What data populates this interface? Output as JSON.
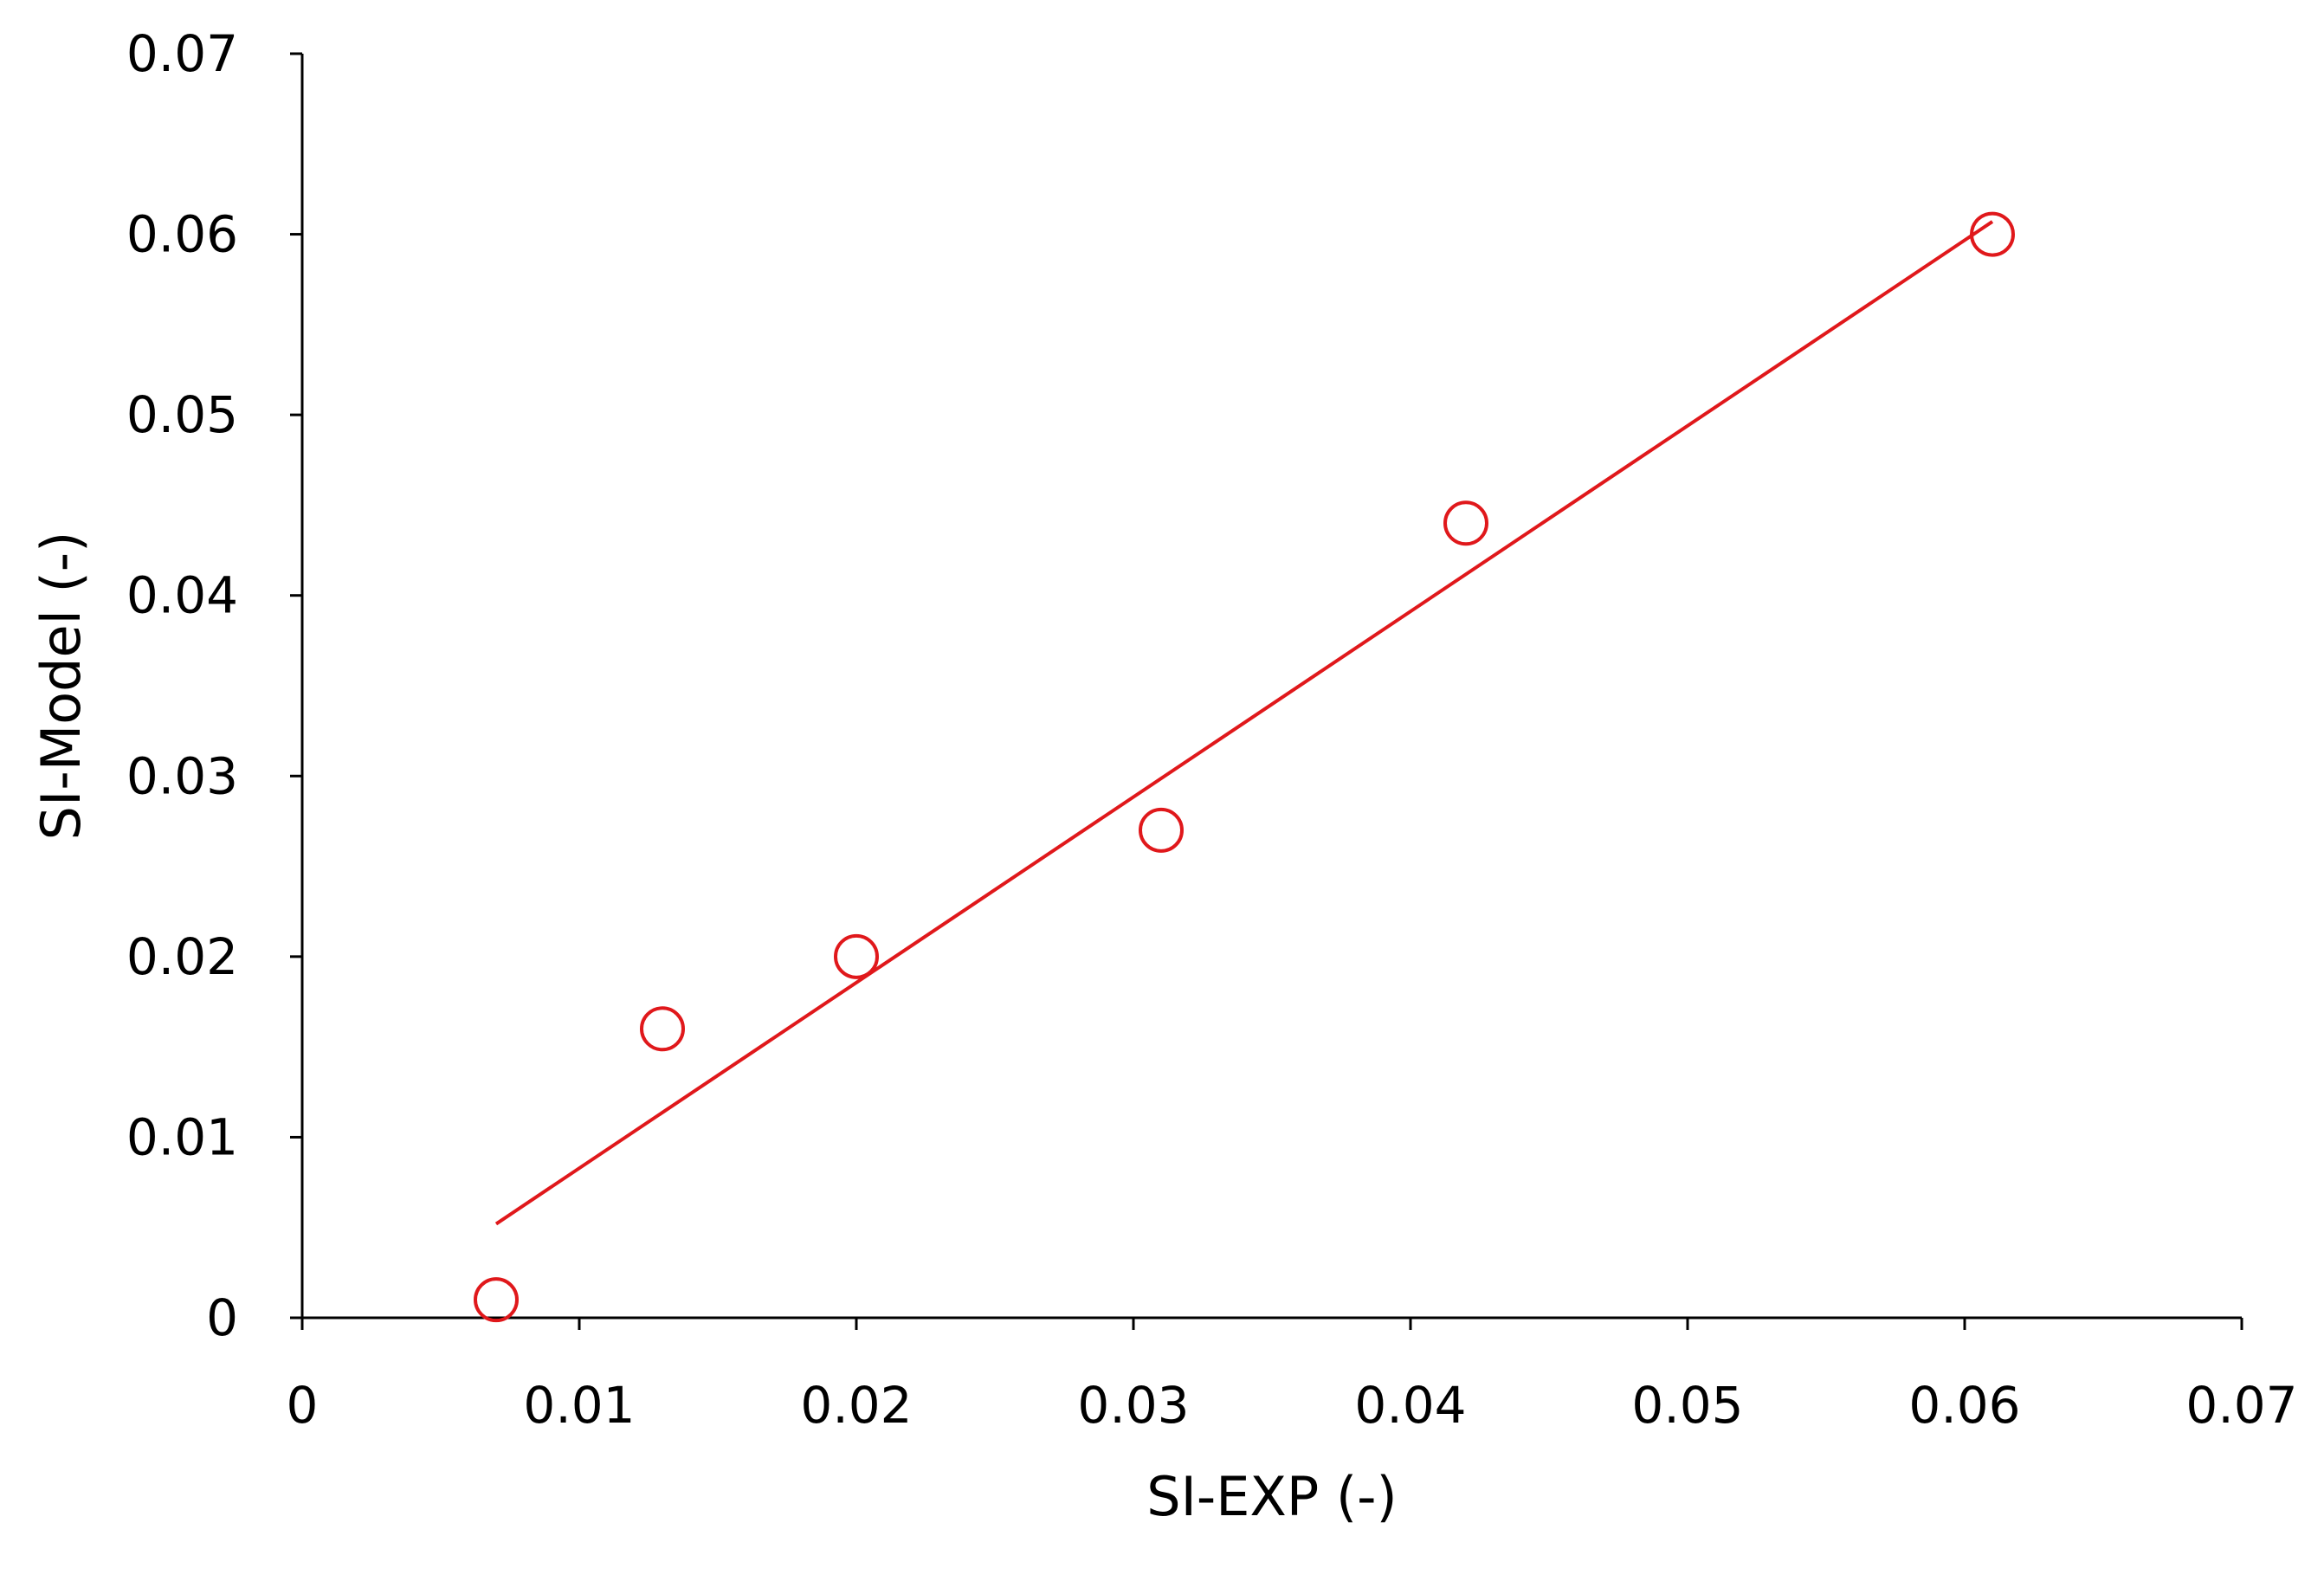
{
  "chart_data": {
    "type": "scatter",
    "x_label": "SI-EXP (-)",
    "y_label": "SI-Model (-)",
    "series": [
      {
        "color": "#e0181b",
        "mode": "markers",
        "x": [
          0.007,
          0.013,
          0.02,
          0.031,
          0.042,
          0.061
        ],
        "values": [
          0.001,
          0.016,
          0.02,
          0.027,
          0.044,
          0.06
        ]
      },
      {
        "color": "#e0181b",
        "mode": "line",
        "x": [
          0.007,
          0.061
        ],
        "values": [
          0.0052,
          0.0607
        ]
      }
    ],
    "xlim": [
      0,
      0.07
    ],
    "ylim": [
      0,
      0.07
    ],
    "xticks": [
      0,
      0.01,
      0.02,
      0.03,
      0.04,
      0.05,
      0.06,
      0.07
    ],
    "yticks": [
      0,
      0.01,
      0.02,
      0.03,
      0.04,
      0.05,
      0.06,
      0.07
    ],
    "grid": false
  }
}
